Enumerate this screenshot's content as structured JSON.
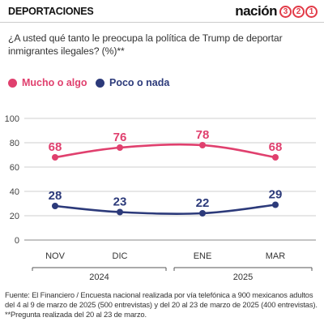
{
  "header": {
    "section": "DEPORTACIONES",
    "logo_word": "nación",
    "logo_digits": [
      "3",
      "2",
      "1"
    ]
  },
  "question": "¿A usted qué tanto le preocupa la política de Trump de deportar inmigrantes ilegales? (%)**",
  "colors": {
    "series1": "#e0406e",
    "series2": "#2c3a7a",
    "logo_accent": "#e23b48",
    "axis": "#555555"
  },
  "legend": [
    {
      "label": "Mucho o algo",
      "color": "#e0406e"
    },
    {
      "label": "Poco o nada",
      "color": "#2c3a7a"
    }
  ],
  "chart_data": {
    "type": "line",
    "categories": [
      "NOV",
      "DIC",
      "ENE",
      "MAR"
    ],
    "year_groups": [
      {
        "label": "2024",
        "categories": [
          "NOV",
          "DIC"
        ]
      },
      {
        "label": "2025",
        "categories": [
          "ENE",
          "MAR"
        ]
      }
    ],
    "series": [
      {
        "name": "Mucho o algo",
        "values": [
          68,
          76,
          78,
          68
        ],
        "labels": [
          "68",
          "76",
          "78",
          "68"
        ]
      },
      {
        "name": "Poco o nada",
        "values": [
          28,
          23,
          22,
          29
        ],
        "labels": [
          "28",
          "23",
          "22",
          "29"
        ]
      }
    ],
    "y_ticks": [
      "0",
      "20",
      "40",
      "60",
      "80",
      "100"
    ],
    "y_tick_values": [
      0,
      20,
      40,
      60,
      80,
      100
    ],
    "ylim": [
      0,
      100
    ],
    "grid": true,
    "legend_position": "top-left"
  },
  "source": {
    "lines": [
      "Fuente: El Financiero / Encuesta nacional realizada por vía telefónica a 900 mexicanos adultos",
      "del 4 al 9 de marzo de 2025 (500 entrevistas)  y del 20 al 23 de marzo de 2025  (400 entrevistas).",
      "**Pregunta realizada del 20 al 23 de marzo."
    ]
  }
}
